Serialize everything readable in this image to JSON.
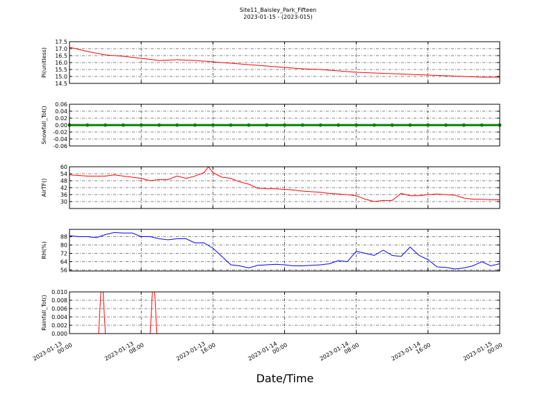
{
  "title": "Site11_Baisley_Park_Fifteen",
  "subtitle": "2023-01-15 - (2023-015)",
  "xlabel": "Date/Time",
  "chart_data": [
    {
      "type": "line",
      "ylabel": "Pi(unitless)",
      "xlim": [
        "2023-01-13 00:00",
        "2023-01-15 00:00"
      ],
      "xticks": [
        "2023-01-13 00:00",
        "2023-01-13 08:00",
        "2023-01-13 16:00",
        "2023-01-14 00:00",
        "2023-01-14 08:00",
        "2023-01-14 16:00",
        "2023-01-15 00:00"
      ],
      "ylim": [
        14.5,
        17.5
      ],
      "yticks": [
        14.5,
        {
          "value": 15,
          "label": "15.0"
        },
        15.5,
        {
          "value": 16,
          "label": "16.0"
        },
        16.5,
        {
          "value": 17,
          "label": "17.0"
        },
        17.5
      ],
      "grid": true,
      "x": [
        "2023-01-13 00:00",
        "2023-01-13 02:00",
        "2023-01-13 04:00",
        "2023-01-13 06:00",
        "2023-01-13 08:00",
        "2023-01-13 10:00",
        "2023-01-13 12:00",
        "2023-01-13 14:00",
        "2023-01-13 16:00",
        "2023-01-13 18:00",
        "2023-01-13 20:00",
        "2023-01-13 22:00",
        "2023-01-14 00:00",
        "2023-01-14 02:00",
        "2023-01-14 04:00",
        "2023-01-14 06:00",
        "2023-01-14 08:00",
        "2023-01-14 10:00",
        "2023-01-14 12:00",
        "2023-01-14 14:00",
        "2023-01-14 16:00",
        "2023-01-14 18:00",
        "2023-01-14 20:00",
        "2023-01-14 22:00",
        "2023-01-15 00:00"
      ],
      "series": [
        {
          "color": "#ff0000",
          "values": [
            17.1,
            16.8,
            16.55,
            16.45,
            16.3,
            16.15,
            16.2,
            16.15,
            16.05,
            15.95,
            15.85,
            15.75,
            15.65,
            15.55,
            15.5,
            15.4,
            15.3,
            15.25,
            15.2,
            15.15,
            15.1,
            15.05,
            15.0,
            14.95,
            14.95
          ]
        }
      ]
    },
    {
      "type": "line",
      "ylabel": "Snowfall_Tot()",
      "xlim": [
        "2023-01-13 00:00",
        "2023-01-15 00:00"
      ],
      "xticks": [
        "2023-01-13 00:00",
        "2023-01-13 08:00",
        "2023-01-13 16:00",
        "2023-01-14 00:00",
        "2023-01-14 08:00",
        "2023-01-14 16:00",
        "2023-01-15 00:00"
      ],
      "ylim": [
        -0.06,
        0.06
      ],
      "yticks": [
        -0.06,
        -0.04,
        -0.02,
        {
          "value": 0,
          "label": "0.00"
        },
        0.02,
        0.04,
        0.06
      ],
      "grid": true,
      "marker": "o",
      "x": [
        "2023-01-13 00:00",
        "2023-01-13 02:00",
        "2023-01-13 04:00",
        "2023-01-13 06:00",
        "2023-01-13 08:00",
        "2023-01-13 10:00",
        "2023-01-13 12:00",
        "2023-01-13 14:00",
        "2023-01-13 16:00",
        "2023-01-13 18:00",
        "2023-01-13 20:00",
        "2023-01-13 22:00",
        "2023-01-14 00:00",
        "2023-01-14 02:00",
        "2023-01-14 04:00",
        "2023-01-14 06:00",
        "2023-01-14 08:00",
        "2023-01-14 10:00",
        "2023-01-14 12:00",
        "2023-01-14 14:00",
        "2023-01-14 16:00",
        "2023-01-14 18:00",
        "2023-01-14 20:00",
        "2023-01-14 22:00",
        "2023-01-15 00:00"
      ],
      "series": [
        {
          "color": "#008000",
          "values": [
            0,
            0,
            0,
            0,
            0,
            0,
            0,
            0,
            0,
            0,
            0,
            0,
            0,
            0,
            0,
            0,
            0,
            0,
            0,
            0,
            0,
            0,
            0,
            0,
            0
          ]
        }
      ]
    },
    {
      "type": "line",
      "ylabel": "AirTF()",
      "xlim": [
        "2023-01-13 00:00",
        "2023-01-15 00:00"
      ],
      "xticks": [
        "2023-01-13 00:00",
        "2023-01-13 08:00",
        "2023-01-13 16:00",
        "2023-01-14 00:00",
        "2023-01-14 08:00",
        "2023-01-14 16:00",
        "2023-01-15 00:00"
      ],
      "ylim": [
        24,
        60
      ],
      "yticks": [
        30,
        36,
        42,
        48,
        54,
        60
      ],
      "grid": true,
      "x": [
        "2023-01-13 00:00",
        "2023-01-13 01:00",
        "2023-01-13 02:00",
        "2023-01-13 03:00",
        "2023-01-13 04:00",
        "2023-01-13 05:00",
        "2023-01-13 06:00",
        "2023-01-13 07:00",
        "2023-01-13 08:00",
        "2023-01-13 09:00",
        "2023-01-13 10:00",
        "2023-01-13 11:00",
        "2023-01-13 12:00",
        "2023-01-13 13:00",
        "2023-01-13 14:00",
        "2023-01-13 15:00",
        "2023-01-13 15:30",
        "2023-01-13 16:00",
        "2023-01-13 17:00",
        "2023-01-13 18:00",
        "2023-01-13 19:00",
        "2023-01-13 20:00",
        "2023-01-13 21:00",
        "2023-01-13 22:00",
        "2023-01-13 23:00",
        "2023-01-14 00:00",
        "2023-01-14 01:00",
        "2023-01-14 02:00",
        "2023-01-14 03:00",
        "2023-01-14 04:00",
        "2023-01-14 05:00",
        "2023-01-14 06:00",
        "2023-01-14 07:00",
        "2023-01-14 08:00",
        "2023-01-14 09:00",
        "2023-01-14 10:00",
        "2023-01-14 11:00",
        "2023-01-14 12:00",
        "2023-01-14 13:00",
        "2023-01-14 14:00",
        "2023-01-14 15:00",
        "2023-01-14 16:00",
        "2023-01-14 17:00",
        "2023-01-14 18:00",
        "2023-01-14 19:00",
        "2023-01-14 20:00",
        "2023-01-14 21:00",
        "2023-01-14 22:00",
        "2023-01-14 23:00",
        "2023-01-15 00:00"
      ],
      "series": [
        {
          "color": "#ff0000",
          "values": [
            53,
            52.5,
            52,
            52,
            52,
            53,
            52,
            51,
            50,
            48,
            49,
            49,
            52,
            50,
            52,
            55,
            60,
            55,
            51,
            50,
            47,
            45,
            41.5,
            41,
            41,
            40.5,
            40,
            39,
            38.5,
            38,
            37,
            36.5,
            36,
            35,
            32,
            30,
            31,
            31,
            37,
            35,
            35,
            36,
            36.5,
            36,
            35.5,
            33,
            32,
            32,
            31.5,
            31.5
          ]
        }
      ]
    },
    {
      "type": "line",
      "ylabel": "RH(%)",
      "xlim": [
        "2023-01-13 00:00",
        "2023-01-15 00:00"
      ],
      "xticks": [
        "2023-01-13 00:00",
        "2023-01-13 08:00",
        "2023-01-13 16:00",
        "2023-01-14 00:00",
        "2023-01-14 08:00",
        "2023-01-14 16:00",
        "2023-01-15 00:00"
      ],
      "ylim": [
        55,
        95
      ],
      "yticks": [
        56,
        64,
        72,
        80,
        88
      ],
      "grid": true,
      "x": [
        "2023-01-13 00:00",
        "2023-01-13 01:00",
        "2023-01-13 02:00",
        "2023-01-13 03:00",
        "2023-01-13 04:00",
        "2023-01-13 05:00",
        "2023-01-13 06:00",
        "2023-01-13 07:00",
        "2023-01-13 08:00",
        "2023-01-13 09:00",
        "2023-01-13 10:00",
        "2023-01-13 11:00",
        "2023-01-13 12:00",
        "2023-01-13 13:00",
        "2023-01-13 14:00",
        "2023-01-13 15:00",
        "2023-01-13 16:00",
        "2023-01-13 17:00",
        "2023-01-13 18:00",
        "2023-01-13 19:00",
        "2023-01-13 20:00",
        "2023-01-13 21:00",
        "2023-01-13 22:00",
        "2023-01-13 23:00",
        "2023-01-14 00:00",
        "2023-01-14 01:00",
        "2023-01-14 02:00",
        "2023-01-14 03:00",
        "2023-01-14 04:00",
        "2023-01-14 05:00",
        "2023-01-14 06:00",
        "2023-01-14 07:00",
        "2023-01-14 08:00",
        "2023-01-14 09:00",
        "2023-01-14 10:00",
        "2023-01-14 11:00",
        "2023-01-14 12:00",
        "2023-01-14 13:00",
        "2023-01-14 14:00",
        "2023-01-14 15:00",
        "2023-01-14 16:00",
        "2023-01-14 17:00",
        "2023-01-14 18:00",
        "2023-01-14 19:00",
        "2023-01-14 20:00",
        "2023-01-14 21:00",
        "2023-01-14 22:00",
        "2023-01-14 23:00",
        "2023-01-15 00:00"
      ],
      "series": [
        {
          "color": "#0000ff",
          "values": [
            89,
            88,
            88,
            87,
            90,
            92,
            91.5,
            91.5,
            88,
            88,
            86,
            85,
            86,
            86,
            82,
            82,
            77,
            69,
            61,
            60,
            58,
            60.5,
            61,
            61.5,
            61,
            60,
            60,
            60.5,
            61,
            62,
            65,
            64,
            74,
            72,
            70,
            75,
            70,
            69,
            78,
            70,
            66,
            59,
            58.5,
            57,
            58,
            60,
            64,
            60,
            62
          ]
        }
      ]
    },
    {
      "type": "line",
      "ylabel": "Rainfall_Tot()",
      "xlim": [
        "2023-01-13 00:00",
        "2023-01-15 00:00"
      ],
      "xticks": [
        {
          "value": "2023-01-13 00:00",
          "label": "2023-01-13\n00:00"
        },
        {
          "value": "2023-01-13 08:00",
          "label": "2023-01-13\n08:00"
        },
        {
          "value": "2023-01-13 16:00",
          "label": "2023-01-13\n16:00"
        },
        {
          "value": "2023-01-14 00:00",
          "label": "2023-01-14\n00:00"
        },
        {
          "value": "2023-01-14 08:00",
          "label": "2023-01-14\n08:00"
        },
        {
          "value": "2023-01-14 16:00",
          "label": "2023-01-14\n16:00"
        },
        {
          "value": "2023-01-15 00:00",
          "label": "2023-01-15\n00:00"
        }
      ],
      "ylim": [
        0,
        0.01
      ],
      "yticks": [
        {
          "value": 0,
          "label": "0.000"
        },
        {
          "value": 0.002,
          "label": "0.002"
        },
        {
          "value": 0.004,
          "label": "0.004"
        },
        {
          "value": 0.006,
          "label": "0.006"
        },
        {
          "value": 0.008,
          "label": "0.008"
        },
        {
          "value": 0.01,
          "label": "0.010"
        }
      ],
      "grid": true,
      "x": [
        "2023-01-13 00:00",
        "2023-01-13 03:15",
        "2023-01-13 03:30",
        "2023-01-13 03:45",
        "2023-01-13 04:00",
        "2023-01-13 09:00",
        "2023-01-13 09:15",
        "2023-01-13 09:30",
        "2023-01-13 09:45",
        "2023-01-15 00:00"
      ],
      "series": [
        {
          "color": "#ff0000",
          "values": [
            0,
            0,
            0.01,
            0.01,
            0,
            0,
            0.01,
            0.01,
            0,
            0
          ]
        }
      ]
    }
  ]
}
